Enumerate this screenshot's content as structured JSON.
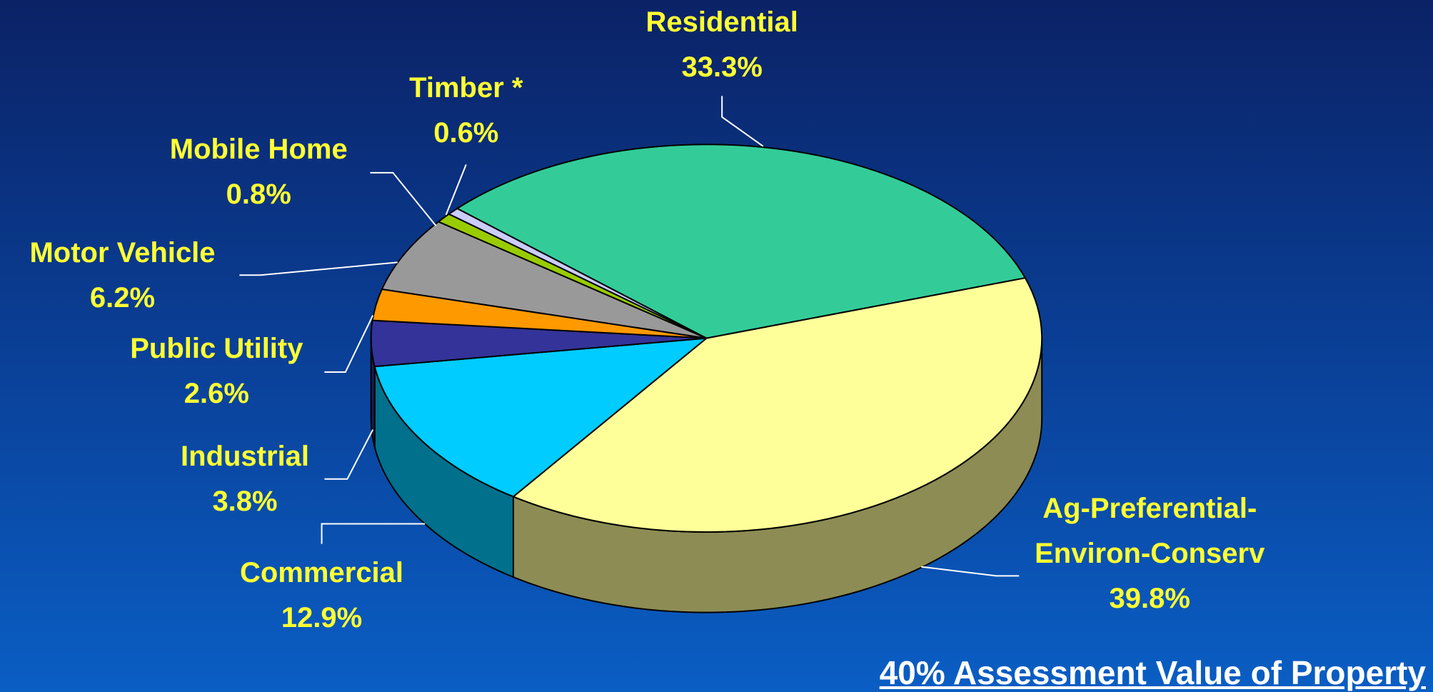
{
  "chart_data": {
    "type": "pie",
    "title": "40% Assessment Value of Property",
    "categories": [
      "Residential",
      "Ag-Preferential-Environ-Conserv",
      "Commercial",
      "Industrial",
      "Public Utility",
      "Motor Vehicle",
      "Mobile Home",
      "Timber *"
    ],
    "values": [
      33.3,
      39.8,
      12.9,
      3.8,
      2.6,
      6.2,
      0.8,
      0.6
    ],
    "value_labels": [
      "33.3%",
      "39.8%",
      "12.9%",
      "3.8%",
      "2.6%",
      "6.2%",
      "0.8%",
      "0.6%"
    ],
    "colors": [
      "#33cc99",
      "#ffff99",
      "#00ccff",
      "#333399",
      "#ff9900",
      "#999999",
      "#99cc00",
      "#ccccff"
    ]
  }
}
